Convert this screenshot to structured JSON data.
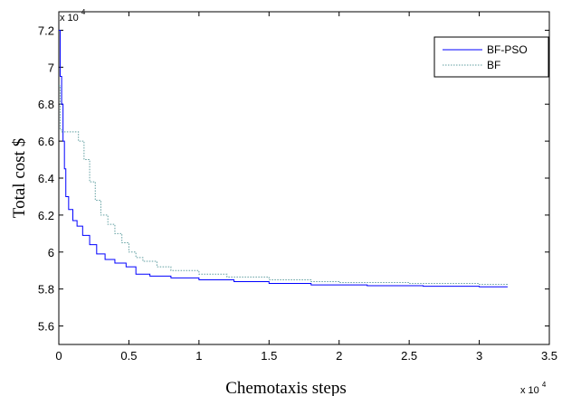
{
  "chart_data": {
    "type": "line",
    "title": "",
    "xlabel": "Chemotaxis steps",
    "ylabel": "Total cost $",
    "x_multiplier_label": {
      "base": "x 10",
      "exp": "4"
    },
    "y_multiplier_label": {
      "base": "x 10",
      "exp": "4"
    },
    "xlim": [
      0,
      3.5
    ],
    "ylim": [
      5.5,
      7.3
    ],
    "xticks": [
      "0",
      "0.5",
      "1",
      "1.5",
      "2",
      "2.5",
      "3",
      "3.5"
    ],
    "yticks": [
      "5.6",
      "5.8",
      "6",
      "6.2",
      "6.4",
      "6.6",
      "6.8",
      "7",
      "7.2"
    ],
    "legend_position": "top-right",
    "grid": false,
    "series": [
      {
        "name": "BF-PSO",
        "color": "#0000ff",
        "style": "solid",
        "x": [
          0,
          0.01,
          0.02,
          0.03,
          0.04,
          0.05,
          0.07,
          0.1,
          0.13,
          0.17,
          0.22,
          0.27,
          0.33,
          0.4,
          0.48,
          0.55,
          0.65,
          0.8,
          1.0,
          1.25,
          1.5,
          1.8,
          2.2,
          2.6,
          3.0,
          3.2
        ],
        "y": [
          7.2,
          6.95,
          6.8,
          6.6,
          6.45,
          6.3,
          6.23,
          6.17,
          6.14,
          6.09,
          6.04,
          5.99,
          5.96,
          5.94,
          5.92,
          5.88,
          5.87,
          5.86,
          5.85,
          5.84,
          5.83,
          5.822,
          5.818,
          5.815,
          5.812,
          5.81
        ]
      },
      {
        "name": "BF",
        "color": "#5f9ea0",
        "style": "dotted",
        "x": [
          0,
          0.01,
          0.02,
          0.1,
          0.14,
          0.18,
          0.22,
          0.26,
          0.3,
          0.35,
          0.4,
          0.45,
          0.5,
          0.55,
          0.6,
          0.7,
          0.8,
          1.0,
          1.2,
          1.5,
          1.8,
          2.0,
          2.5,
          3.0,
          3.2
        ],
        "y": [
          6.9,
          6.66,
          6.65,
          6.65,
          6.6,
          6.5,
          6.38,
          6.28,
          6.2,
          6.15,
          6.1,
          6.05,
          6.0,
          5.97,
          5.95,
          5.92,
          5.9,
          5.88,
          5.865,
          5.85,
          5.84,
          5.835,
          5.83,
          5.825,
          5.82
        ]
      }
    ]
  }
}
